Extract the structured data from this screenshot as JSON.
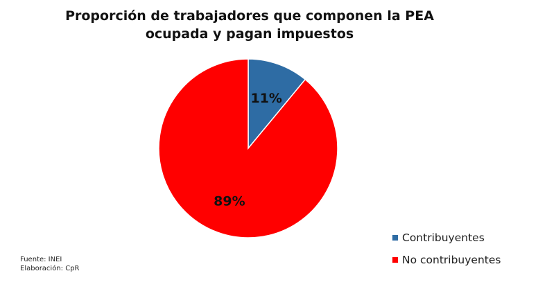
{
  "chart_data": {
    "type": "pie",
    "title": "Proporción de trabajadores que componen la PEA ocupada y pagan impuestos",
    "slices": [
      {
        "label": "Contribuyentes",
        "value": 11,
        "display": "11%",
        "color": "#2e6ca4"
      },
      {
        "label": "No contribuyentes",
        "value": 89,
        "display": "89%",
        "color": "#ff0000"
      }
    ],
    "legend_position": "bottom-right"
  },
  "footnote": {
    "source": "Fuente: INEI",
    "elaboration": "Elaboración: CpR"
  }
}
